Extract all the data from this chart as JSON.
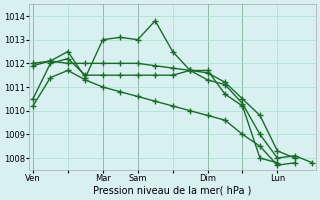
{
  "background_color": "#d8f0f0",
  "grid_color": "#aaddcc",
  "line_color": "#1a6b2a",
  "title": "Pression niveau de la mer( hPa )",
  "ylim": [
    1007.5,
    1014.5
  ],
  "yticks": [
    1008,
    1009,
    1010,
    1011,
    1012,
    1013,
    1014
  ],
  "xtick_labels": [
    "Ven",
    "",
    "Mar",
    "Sam",
    "",
    "Dim",
    "",
    "Lun"
  ],
  "xtick_pos": [
    0,
    2,
    4,
    6,
    8,
    10,
    12,
    14
  ],
  "vlines": [
    0,
    4,
    6,
    10,
    12
  ],
  "series": [
    [
      1010.5,
      1012.0,
      1012.2,
      1011.5,
      1011.5,
      1011.5,
      1011.5,
      1011.5,
      1011.5,
      1011.7,
      1011.7,
      1010.7,
      1010.2,
      1008.0,
      1007.8
    ],
    [
      1011.9,
      1012.1,
      1012.5,
      1011.4,
      1013.0,
      1013.1,
      1013.0,
      1013.8,
      1012.5,
      1011.7,
      1011.3,
      1011.1,
      1010.3,
      1009.0,
      1008.0,
      1008.1,
      1007.8
    ],
    [
      1012.0,
      1012.1,
      1012.0,
      1012.0,
      1012.0,
      1012.0,
      1012.0,
      1011.9,
      1011.8,
      1011.7,
      1011.6,
      1011.2,
      1010.5,
      1009.8,
      1008.3,
      1008.0
    ],
    [
      1010.2,
      1011.4,
      1011.7,
      1011.3,
      1011.0,
      1010.8,
      1010.6,
      1010.4,
      1010.2,
      1010.0,
      1009.8,
      1009.6,
      1009.0,
      1008.5,
      1007.7,
      1007.8
    ]
  ],
  "series_x": [
    [
      0,
      1,
      2,
      3,
      4,
      5,
      6,
      7,
      8,
      9,
      10,
      11,
      12,
      13,
      14
    ],
    [
      0,
      1,
      2,
      3,
      4,
      5,
      6,
      7,
      8,
      9,
      10,
      11,
      12,
      13,
      14,
      15,
      16
    ],
    [
      0,
      1,
      2,
      3,
      4,
      5,
      6,
      7,
      8,
      9,
      10,
      11,
      12,
      13,
      14,
      15
    ],
    [
      0,
      1,
      2,
      3,
      4,
      5,
      6,
      7,
      8,
      9,
      10,
      11,
      12,
      13,
      14,
      15
    ]
  ],
  "xlim": [
    -0.2,
    16.2
  ]
}
